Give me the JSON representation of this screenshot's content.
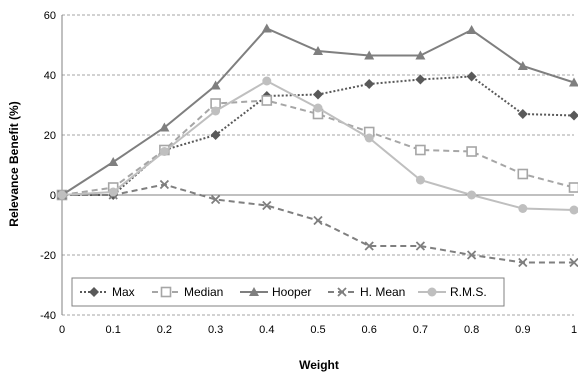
{
  "chart_data": {
    "type": "line",
    "title": "",
    "xlabel": "Weight",
    "ylabel": "Relevance Benefit (%)",
    "x": [
      0,
      0.1,
      0.2,
      0.3,
      0.4,
      0.5,
      0.6,
      0.7,
      0.8,
      0.9,
      1
    ],
    "x_tick_labels": [
      "0",
      "0.1",
      "0.2",
      "0.3",
      "0.4",
      "0.5",
      "0.6",
      "0.7",
      "0.8",
      "0.9",
      "1"
    ],
    "xlim": [
      0,
      1
    ],
    "ylim": [
      -40,
      60
    ],
    "y_ticks": [
      -40,
      -20,
      0,
      20,
      40,
      60
    ],
    "y_tick_labels": [
      "-40",
      "-20",
      "0",
      "20",
      "40",
      "60"
    ],
    "grid": "horizontal dashed",
    "legend_position": "bottom-left inside",
    "series": [
      {
        "name": "Max",
        "marker": "diamond",
        "line_style": "dotted",
        "color": "#595959",
        "values": [
          0,
          0,
          15,
          20,
          33,
          33.5,
          37,
          38.5,
          39.5,
          27,
          26.5
        ]
      },
      {
        "name": "Median",
        "marker": "square-open",
        "line_style": "dashed",
        "color": "#a6a6a6",
        "values": [
          0,
          2.5,
          15,
          30.5,
          31.5,
          27,
          21,
          15,
          14.5,
          7,
          2.5
        ]
      },
      {
        "name": "Hooper",
        "marker": "triangle",
        "line_style": "solid",
        "color": "#7f7f7f",
        "values": [
          0,
          11,
          22.5,
          36.5,
          55.5,
          48,
          46.5,
          46.5,
          55,
          43,
          37.5
        ]
      },
      {
        "name": "H. Mean",
        "marker": "x",
        "line_style": "dashed",
        "color": "#7f7f7f",
        "values": [
          0,
          0,
          3.5,
          -1.5,
          -3.5,
          -8.5,
          -17,
          -17,
          -20,
          -22.5,
          -22.5
        ]
      },
      {
        "name": "R.M.S.",
        "marker": "circle",
        "line_style": "solid",
        "color": "#bfbfbf",
        "values": [
          0,
          1,
          14.5,
          28,
          38,
          29,
          19,
          5,
          0,
          -4.5,
          -5
        ]
      }
    ]
  }
}
